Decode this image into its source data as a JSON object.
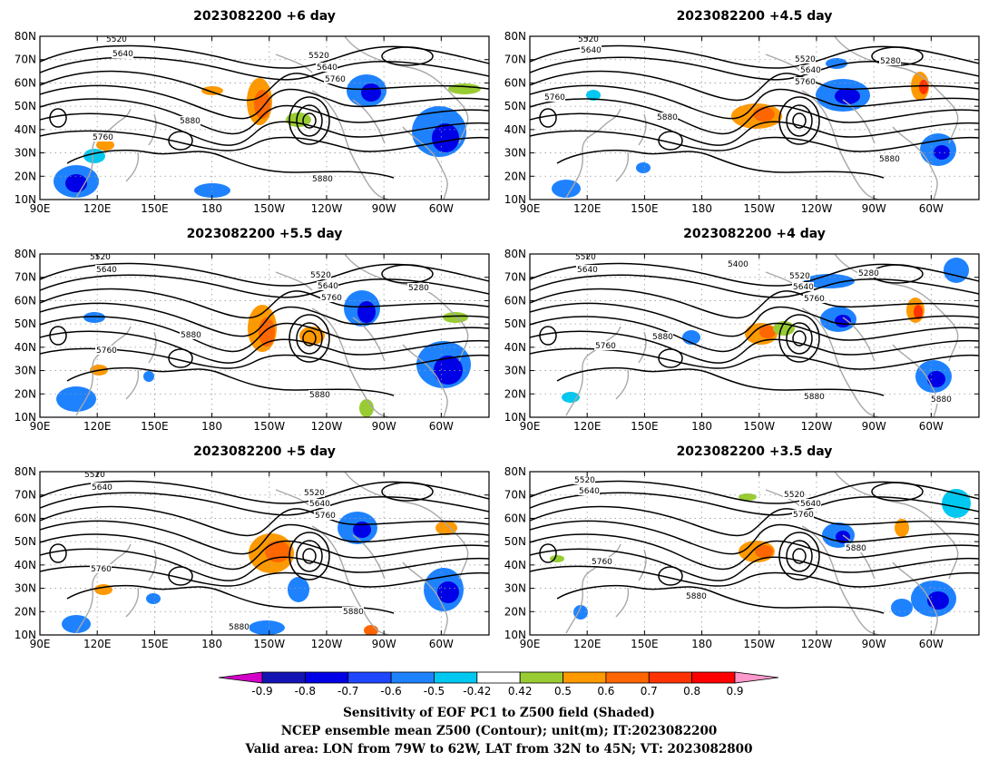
{
  "panels": [
    {
      "id": "p1",
      "title": "2023082200  +6 day"
    },
    {
      "id": "p2",
      "title": "2023082200  +4.5  day"
    },
    {
      "id": "p3",
      "title": "2023082200  +5.5  day"
    },
    {
      "id": "p4",
      "title": "2023082200  +4  day"
    },
    {
      "id": "p5",
      "title": "2023082200  +5  day"
    },
    {
      "id": "p6",
      "title": "2023082200  +3.5  day"
    }
  ],
  "map_axes": {
    "lat_ticks": [
      "80N",
      "70N",
      "60N",
      "50N",
      "40N",
      "30N",
      "20N",
      "10N"
    ],
    "lon_ticks": [
      "90E",
      "120E",
      "150E",
      "180",
      "150W",
      "120W",
      "90W",
      "60W"
    ],
    "lat_range": [
      10,
      80
    ],
    "lon_range_deg_east": [
      90,
      325
    ],
    "grid": "dotted"
  },
  "contour_labels": {
    "p1": [
      "5520",
      "5640",
      "5520",
      "5640",
      "5760",
      "5880",
      "5760",
      "5880"
    ],
    "p2": [
      "5520",
      "5640",
      "5520",
      "5640",
      "5760",
      "5280",
      "5760",
      "5880",
      "5880"
    ],
    "p3": [
      "5520",
      "5640",
      "5520",
      "5640",
      "5760",
      "5280",
      "5880",
      "5760",
      "5880"
    ],
    "p4": [
      "5520",
      "5640",
      "5400",
      "5520",
      "5640",
      "5760",
      "5280",
      "5760",
      "5880",
      "5880",
      "5880"
    ],
    "p5": [
      "5520",
      "5640",
      "5520",
      "5640",
      "5760",
      "5760",
      "5880",
      "5880"
    ],
    "p6": [
      "5520",
      "5640",
      "5520",
      "5640",
      "5760",
      "5880",
      "5760",
      "5880"
    ]
  },
  "colorbar": {
    "ticks": [
      "-0.9",
      "-0.8",
      "-0.7",
      "-0.6",
      "-0.5",
      "-0.42",
      "0.42",
      "0.5",
      "0.6",
      "0.7",
      "0.8",
      "0.9"
    ],
    "colors": [
      "#d400c8",
      "#1414b4",
      "#0000e6",
      "#1e46ff",
      "#1e82ff",
      "#00c8f0",
      "#ffffff",
      "#99cc33",
      "#ff9900",
      "#ff6600",
      "#ff3300",
      "#ff0000",
      "#ff99cc"
    ]
  },
  "caption": {
    "line1": "Sensitivity of EOF PC1 to Z500 field (Shaded)",
    "line2": "NCEP ensemble mean Z500 (Contour); unit(m); IT:2023082200",
    "line3": "Valid area: LON from 79W to 62W, LAT from 32N to 45N; VT: 2023082800"
  }
}
